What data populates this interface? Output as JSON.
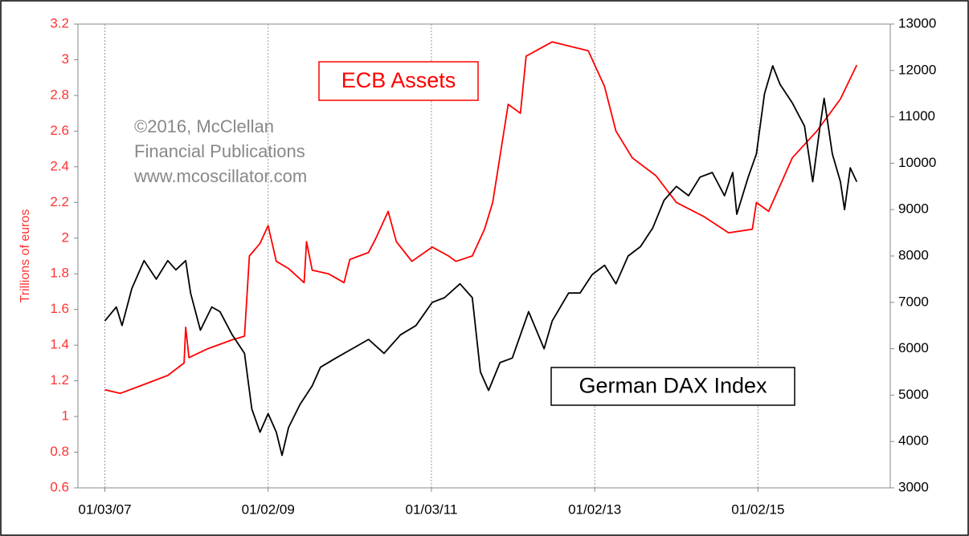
{
  "chart_data": {
    "type": "line",
    "y_label": "Trillions of euros",
    "annotations": [
      "©2016, McClellan",
      "Financial Publications",
      "www.mcoscillator.com"
    ],
    "xlim": [
      2006.67,
      2016.62
    ],
    "xticks": [
      {
        "value": 2007.0,
        "label": "01/03/07"
      },
      {
        "value": 2009.0,
        "label": "01/02/09"
      },
      {
        "value": 2011.0,
        "label": "01/03/11"
      },
      {
        "value": 2013.0,
        "label": "01/02/13"
      },
      {
        "value": 2015.0,
        "label": "01/02/15"
      }
    ],
    "ylim": [
      0.6,
      3.2
    ],
    "yticks": [
      0.6,
      0.8,
      1,
      1.2,
      1.4,
      1.6,
      1.8,
      2,
      2.2,
      2.4,
      2.6,
      2.8,
      3,
      3.2
    ],
    "y2lim": [
      3000,
      13000
    ],
    "y2ticks": [
      3000,
      4000,
      5000,
      6000,
      7000,
      8000,
      9000,
      10000,
      11000,
      12000,
      13000
    ],
    "grid": true,
    "series": [
      {
        "name": "ECB Assets",
        "color": "#ff0000",
        "x": [
          2007.0,
          2007.19,
          2007.48,
          2007.77,
          2007.97,
          2007.99,
          2008.03,
          2008.26,
          2008.56,
          2008.71,
          2008.77,
          2008.9,
          2009.0,
          2009.1,
          2009.25,
          2009.44,
          2009.47,
          2009.54,
          2009.74,
          2009.93,
          2010.0,
          2010.23,
          2010.32,
          2010.47,
          2010.57,
          2010.76,
          2011.01,
          2011.21,
          2011.3,
          2011.5,
          2011.65,
          2011.75,
          2011.94,
          2012.09,
          2012.16,
          2012.28,
          2012.48,
          2012.92,
          2013.12,
          2013.26,
          2013.46,
          2013.75,
          2014.0,
          2014.34,
          2014.64,
          2014.93,
          2014.98,
          2015.13,
          2015.42,
          2015.72,
          2016.01,
          2016.21
        ],
        "values": [
          1.15,
          1.13,
          1.18,
          1.23,
          1.3,
          1.5,
          1.33,
          1.38,
          1.43,
          1.45,
          1.9,
          1.97,
          2.07,
          1.87,
          1.83,
          1.75,
          1.98,
          1.82,
          1.8,
          1.75,
          1.88,
          1.92,
          2.0,
          2.15,
          1.98,
          1.87,
          1.95,
          1.9,
          1.87,
          1.9,
          2.05,
          2.2,
          2.75,
          2.7,
          3.02,
          3.05,
          3.1,
          3.05,
          2.85,
          2.6,
          2.45,
          2.35,
          2.2,
          2.12,
          2.03,
          2.05,
          2.2,
          2.15,
          2.45,
          2.6,
          2.78,
          2.97
        ]
      },
      {
        "name": "German DAX Index",
        "color": "#000000",
        "axis": "y2",
        "x": [
          2007.0,
          2007.14,
          2007.21,
          2007.33,
          2007.48,
          2007.63,
          2007.77,
          2007.87,
          2007.99,
          2008.05,
          2008.17,
          2008.31,
          2008.41,
          2008.56,
          2008.71,
          2008.8,
          2008.9,
          2009.0,
          2009.1,
          2009.17,
          2009.25,
          2009.39,
          2009.54,
          2009.64,
          2009.83,
          2010.03,
          2010.23,
          2010.42,
          2010.62,
          2010.81,
          2011.01,
          2011.16,
          2011.35,
          2011.5,
          2011.6,
          2011.7,
          2011.84,
          2011.99,
          2012.19,
          2012.38,
          2012.48,
          2012.68,
          2012.82,
          2012.97,
          2013.12,
          2013.26,
          2013.41,
          2013.56,
          2013.71,
          2013.85,
          2014.0,
          2014.15,
          2014.29,
          2014.44,
          2014.59,
          2014.69,
          2014.74,
          2014.88,
          2014.98,
          2015.08,
          2015.18,
          2015.27,
          2015.42,
          2015.57,
          2015.67,
          2015.76,
          2015.81,
          2015.91,
          2016.01,
          2016.06,
          2016.13,
          2016.21
        ],
        "values": [
          6600,
          6900,
          6500,
          7300,
          7900,
          7500,
          7900,
          7700,
          7900,
          7200,
          6400,
          6900,
          6800,
          6300,
          5900,
          4700,
          4200,
          4600,
          4200,
          3700,
          4300,
          4800,
          5200,
          5600,
          5800,
          6000,
          6200,
          5900,
          6300,
          6500,
          7000,
          7100,
          7400,
          7100,
          5500,
          5100,
          5700,
          5800,
          6800,
          6000,
          6600,
          7200,
          7200,
          7600,
          7800,
          7400,
          8000,
          8200,
          8600,
          9200,
          9500,
          9300,
          9700,
          9800,
          9300,
          9800,
          8900,
          9700,
          10200,
          11500,
          12100,
          11700,
          11300,
          10800,
          9600,
          10800,
          11400,
          10200,
          9600,
          9000,
          9900,
          9600
        ]
      }
    ]
  }
}
